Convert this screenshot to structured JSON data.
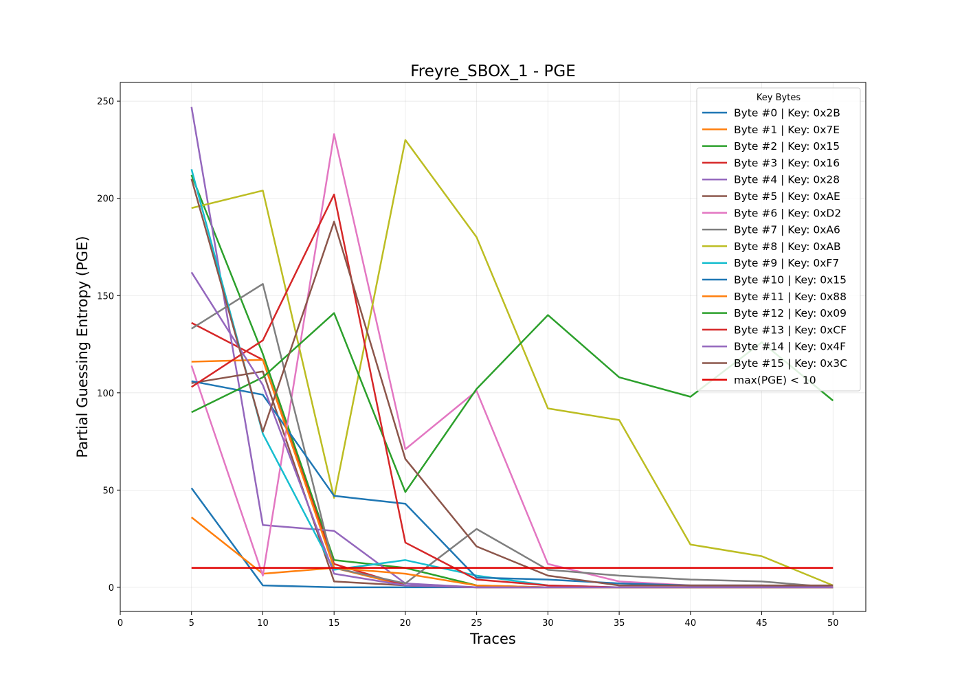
{
  "chart_data": {
    "type": "line",
    "title": "Freyre_SBOX_1 - PGE",
    "xlabel": "Traces",
    "ylabel": "Partial Guessing Entropy (PGE)",
    "xlim": [
      0,
      52.3
    ],
    "ylim": [
      -12.4,
      259.6
    ],
    "xticks": [
      0,
      5,
      10,
      15,
      20,
      25,
      30,
      35,
      40,
      45,
      50
    ],
    "yticks": [
      0,
      50,
      100,
      150,
      200,
      250
    ],
    "grid": true,
    "legend": {
      "title": "Key Bytes",
      "placement": "top-right"
    },
    "x": [
      5,
      10,
      15,
      20,
      25,
      30,
      35,
      40,
      45,
      50
    ],
    "series": [
      {
        "name": "Byte #0 | Key: 0x2B",
        "color": "#1f77b4",
        "values": [
          51,
          1,
          0,
          0,
          0,
          0,
          0,
          0,
          0,
          0
        ]
      },
      {
        "name": "Byte #1 | Key: 0x7E",
        "color": "#ff7f0e",
        "values": [
          36,
          7,
          10,
          1,
          0,
          0,
          0,
          0,
          0,
          0
        ]
      },
      {
        "name": "Byte #2 | Key: 0x15",
        "color": "#2ca02c",
        "values": [
          212,
          120,
          14,
          10,
          1,
          0,
          0,
          0,
          0,
          0
        ]
      },
      {
        "name": "Byte #3 | Key: 0x16",
        "color": "#d62728",
        "values": [
          136,
          117,
          12,
          1,
          0,
          0,
          0,
          0,
          0,
          0
        ]
      },
      {
        "name": "Byte #4 | Key: 0x28",
        "color": "#9467bd",
        "values": [
          247,
          32,
          29,
          2,
          0,
          0,
          0,
          0,
          0,
          0
        ]
      },
      {
        "name": "Byte #5 | Key: 0xAE",
        "color": "#8c564b",
        "values": [
          105,
          111,
          3,
          1,
          0,
          0,
          0,
          0,
          0,
          0
        ]
      },
      {
        "name": "Byte #6 | Key: 0xD2",
        "color": "#e377c2",
        "values": [
          114,
          6,
          233,
          71,
          101,
          12,
          3,
          1,
          1,
          0
        ]
      },
      {
        "name": "Byte #7 | Key: 0xA6",
        "color": "#7f7f7f",
        "values": [
          133,
          156,
          10,
          2,
          30,
          9,
          6,
          4,
          3,
          0
        ]
      },
      {
        "name": "Byte #8 | Key: 0xAB",
        "color": "#bcbd22",
        "values": [
          195,
          204,
          46,
          230,
          180,
          92,
          86,
          22,
          16,
          1
        ]
      },
      {
        "name": "Byte #9 | Key: 0xF7",
        "color": "#17becf",
        "values": [
          215,
          79,
          9,
          14,
          6,
          1,
          0,
          0,
          0,
          0
        ]
      },
      {
        "name": "Byte #10 | Key: 0x15",
        "color": "#1f77b4",
        "values": [
          106,
          99,
          47,
          43,
          5,
          4,
          2,
          1,
          1,
          0
        ]
      },
      {
        "name": "Byte #11 | Key: 0x88",
        "color": "#ff7f0e",
        "values": [
          116,
          117,
          10,
          7,
          1,
          0,
          0,
          0,
          0,
          0
        ]
      },
      {
        "name": "Byte #12 | Key: 0x09",
        "color": "#2ca02c",
        "values": [
          90,
          108,
          141,
          49,
          102,
          140,
          108,
          98,
          126,
          96
        ]
      },
      {
        "name": "Byte #13 | Key: 0xCF",
        "color": "#d62728",
        "values": [
          103,
          127,
          202,
          23,
          4,
          1,
          0,
          0,
          0,
          0
        ]
      },
      {
        "name": "Byte #14 | Key: 0x4F",
        "color": "#9467bd",
        "values": [
          162,
          104,
          7,
          1,
          0,
          0,
          0,
          0,
          0,
          0
        ]
      },
      {
        "name": "Byte #15 | Key: 0x3C",
        "color": "#8c564b",
        "values": [
          210,
          80,
          188,
          66,
          21,
          6,
          1,
          1,
          1,
          1
        ]
      }
    ],
    "threshold": {
      "name": "max(PGE) < 10",
      "color": "#e00000",
      "value": 10,
      "x_range": [
        5,
        50
      ]
    }
  }
}
